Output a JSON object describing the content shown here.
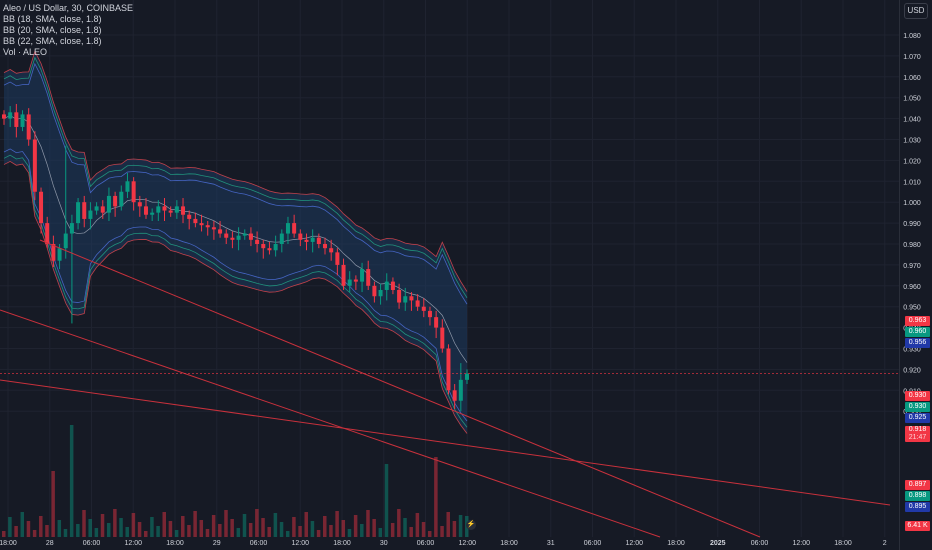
{
  "header": {
    "title": "Aleo / US Dollar, 30, COINBASE",
    "indicators": [
      "BB (18, SMA, close, 1.8)",
      "BB (20, SMA, close, 1.8)",
      "BB (22, SMA, close, 1.8)",
      "Vol · ALEO"
    ]
  },
  "currency_button": "USD",
  "price_axis": {
    "ticks": [
      "1.080",
      "1.070",
      "1.060",
      "1.050",
      "1.040",
      "1.030",
      "1.020",
      "1.010",
      "1.000",
      "0.990",
      "0.980",
      "0.970",
      "0.960",
      "0.950",
      "0.940",
      "0.930",
      "0.920",
      "0.910",
      "0.900"
    ]
  },
  "time_axis": {
    "labels": [
      "18:00",
      "28",
      "06:00",
      "12:00",
      "18:00",
      "29",
      "06:00",
      "12:00",
      "18:00",
      "30",
      "06:00",
      "12:00",
      "18:00",
      "31",
      "06:00",
      "12:00",
      "18:00",
      "2025",
      "06:00",
      "12:00",
      "18:00",
      "2"
    ],
    "bold": [
      "2025"
    ]
  },
  "price_tags": [
    {
      "value": "0.963",
      "color": "#f23645"
    },
    {
      "value": "0.960",
      "color": "#089981"
    },
    {
      "value": "0.956",
      "color": "#2139a8"
    },
    {
      "value": "0.930",
      "color": "#f23645"
    },
    {
      "value": "0.930",
      "color": "#089981"
    },
    {
      "value": "0.925",
      "color": "#2139a8"
    },
    {
      "value": "0.918",
      "sub": "21:47",
      "color": "#f23645"
    },
    {
      "value": "0.897",
      "color": "#f23645"
    },
    {
      "value": "0.898",
      "color": "#089981"
    },
    {
      "value": "0.895",
      "color": "#2139a8"
    },
    {
      "value": "6.41 K",
      "color": "#f23645"
    }
  ],
  "last_price": "0.918",
  "countdown": "21:47",
  "colors": {
    "background": "#161a25",
    "up": "#089981",
    "down": "#f23645",
    "band_fill": "#1e3a5f",
    "trendline": "#c8313c",
    "text": "#d1d4dc"
  },
  "chart_data": {
    "type": "candlestick",
    "symbol": "Aleo / US Dollar",
    "interval": "30",
    "exchange": "COINBASE",
    "ylim": [
      0.895,
      1.085
    ],
    "close_series_approx": [
      1.04,
      1.043,
      1.036,
      1.042,
      1.03,
      1.005,
      0.99,
      0.98,
      0.972,
      0.978,
      0.985,
      0.99,
      1.0,
      0.992,
      0.996,
      0.998,
      0.995,
      1.003,
      0.998,
      1.005,
      1.01,
      1.0,
      0.998,
      0.994,
      0.995,
      0.998,
      0.996,
      0.995,
      0.998,
      0.994,
      0.992,
      0.99,
      0.989,
      0.988,
      0.987,
      0.985,
      0.983,
      0.982,
      0.984,
      0.985,
      0.982,
      0.98,
      0.978,
      0.977,
      0.98,
      0.985,
      0.99,
      0.985,
      0.982,
      0.981,
      0.983,
      0.98,
      0.978,
      0.976,
      0.97,
      0.96,
      0.963,
      0.962,
      0.968,
      0.96,
      0.955,
      0.958,
      0.962,
      0.958,
      0.952,
      0.955,
      0.953,
      0.95,
      0.948,
      0.945,
      0.94,
      0.93,
      0.91,
      0.905,
      0.915,
      0.918
    ],
    "indicators": [
      "BB (18, SMA, close, 1.8)",
      "BB (20, SMA, close, 1.8)",
      "BB (22, SMA, close, 1.8)",
      "Vol · ALEO"
    ],
    "last_price": 0.918,
    "bands_last": {
      "upper": [
        0.963,
        0.96,
        0.956
      ],
      "mid": [
        0.93,
        0.93,
        0.925
      ],
      "lower": [
        0.897,
        0.898,
        0.895
      ]
    },
    "volume_last": "6.41 K"
  }
}
